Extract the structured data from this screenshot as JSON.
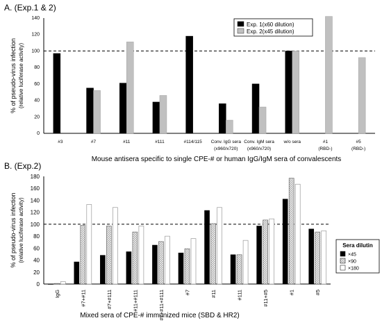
{
  "colors": {
    "exp1": "#000000",
    "exp2": "#c0c0c0",
    "dil45": "#000000",
    "dil90": "#a8a8a8",
    "dil180": "#ffffff",
    "reference_line": "#000000"
  },
  "chart_data": [
    {
      "type": "bar",
      "panel_title": "A. (Exp.1 & 2)",
      "xlabel": "Mouse antisera specific to single CPE-# or human IgG/IgM sera of convalescents",
      "ylabel": "% of pseudo-virus infection",
      "ylabel2": "(relative luciferase activity)",
      "ylim": [
        0,
        140
      ],
      "yticks": [
        0,
        20,
        40,
        60,
        80,
        100,
        120,
        140
      ],
      "reference_line": 100,
      "legend_position": "top-right",
      "categories": [
        "#3",
        "#7",
        "#11",
        "#111",
        "#114/115",
        "Conv. IgG sera",
        "Conv. IgM sera",
        "w/o sera",
        "#1",
        "#5"
      ],
      "categories_sub": [
        "",
        "",
        "",
        "",
        "",
        "(x960/x720)",
        "(x960/x720)",
        "",
        "(RBD-)",
        "(RBD-)"
      ],
      "series": [
        {
          "name": "Exp. 1(x60 dilution)",
          "values": [
            97,
            55,
            61,
            38,
            118,
            36,
            60,
            100,
            null,
            null
          ]
        },
        {
          "name": "Exp. 2(x45 dilution)",
          "values": [
            null,
            52,
            111,
            46,
            null,
            16,
            32,
            100,
            142,
            92
          ]
        }
      ]
    },
    {
      "type": "bar",
      "panel_title": "B. (Exp.2)",
      "xlabel": "Mixed sera of CPE-# immunized mice (SBD & HR2)",
      "ylabel": "% of pseudo-virus infection",
      "ylabel2": "(relative luciferase activity)",
      "ylim": [
        0,
        180
      ],
      "yticks": [
        0,
        20,
        40,
        60,
        80,
        100,
        120,
        140,
        160,
        180
      ],
      "reference_line": 100,
      "legend_title": "Sera dilutin",
      "legend_position": "right",
      "categories": [
        "IgG",
        "#7+#11",
        "#7+#111",
        "#11+#111",
        "#7+#11+#111",
        "#7",
        "#11",
        "#111",
        "#11+#5",
        "#1",
        "#5"
      ],
      "series": [
        {
          "name": "×45",
          "values": [
            0,
            37,
            48,
            54,
            65,
            52,
            123,
            49,
            97,
            142,
            92
          ]
        },
        {
          "name": "×90",
          "values": [
            1,
            98,
            97,
            87,
            71,
            59,
            101,
            49,
            107,
            177,
            87
          ]
        },
        {
          "name": "×180",
          "values": [
            4,
            133,
            128,
            97,
            80,
            76,
            128,
            73,
            109,
            167,
            89
          ]
        }
      ]
    }
  ]
}
